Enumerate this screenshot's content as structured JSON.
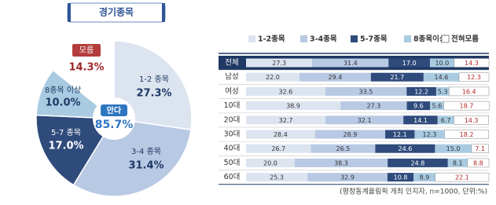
{
  "chart_data": [
    {
      "type": "pie",
      "title": "경기종목",
      "categories": [
        "1-2 종목",
        "3-4 종목",
        "5-7 종목",
        "8종목 이상",
        "모름"
      ],
      "values": [
        27.3,
        31.4,
        17.0,
        10.0,
        14.3
      ],
      "value_labels": [
        "27.3%",
        "31.4%",
        "17.0%",
        "10.0%",
        "14.3%"
      ],
      "colors": [
        "#dce4f0",
        "#b8c9e4",
        "#2f4b7c",
        "#a9cbe2",
        "#ffffff"
      ],
      "center": {
        "label": "안다",
        "value": 85.7,
        "value_label": "85.7%"
      }
    },
    {
      "type": "stacked-barh",
      "categories": [
        "전체",
        "남성",
        "여성",
        "10대",
        "20대",
        "30대",
        "40대",
        "50대",
        "60대"
      ],
      "series": [
        {
          "name": "1-2종목",
          "color": "#dce4f0",
          "values": [
            27.3,
            22.0,
            32.6,
            38.9,
            32.7,
            28.4,
            26.7,
            20.0,
            25.3
          ],
          "value_labels": [
            "27.3",
            "22.0",
            "32.6",
            "38.9",
            "32.7",
            "28.4",
            "26.7",
            "20.0",
            "25.3"
          ]
        },
        {
          "name": "3-4종목",
          "color": "#b8c9e4",
          "values": [
            31.4,
            29.4,
            33.5,
            27.3,
            32.1,
            28.9,
            26.5,
            38.3,
            32.9
          ]
        },
        {
          "name": "5-7종목",
          "color": "#2f4b7c",
          "values": [
            17.0,
            21.7,
            12.2,
            9.6,
            14.1,
            12.1,
            24.6,
            24.8,
            10.8
          ],
          "value_labels": [
            "17.0",
            "21.7",
            "12.2",
            "9.6",
            "14.1",
            "12.1",
            "24.6",
            "24.8",
            "10.8"
          ]
        },
        {
          "name": "8종목이상",
          "color": "#a9cbe2",
          "values": [
            10.0,
            14.6,
            5.3,
            5.6,
            6.7,
            12.3,
            15.0,
            8.1,
            8.9
          ],
          "value_labels": [
            "10.0",
            "14.6",
            "5.3",
            "5.6",
            "6.7",
            "12.3",
            "15.0",
            "8.1",
            "8.9"
          ]
        },
        {
          "name": "전혀모름",
          "color": "#ffffff",
          "values": [
            14.3,
            12.3,
            16.4,
            18.7,
            14.3,
            18.2,
            7.1,
            8.8,
            22.1
          ]
        }
      ],
      "xlim": [
        0,
        100
      ],
      "note": "(평창동계올림픽 개최 인지자, n=1000, 단위:%)"
    }
  ]
}
